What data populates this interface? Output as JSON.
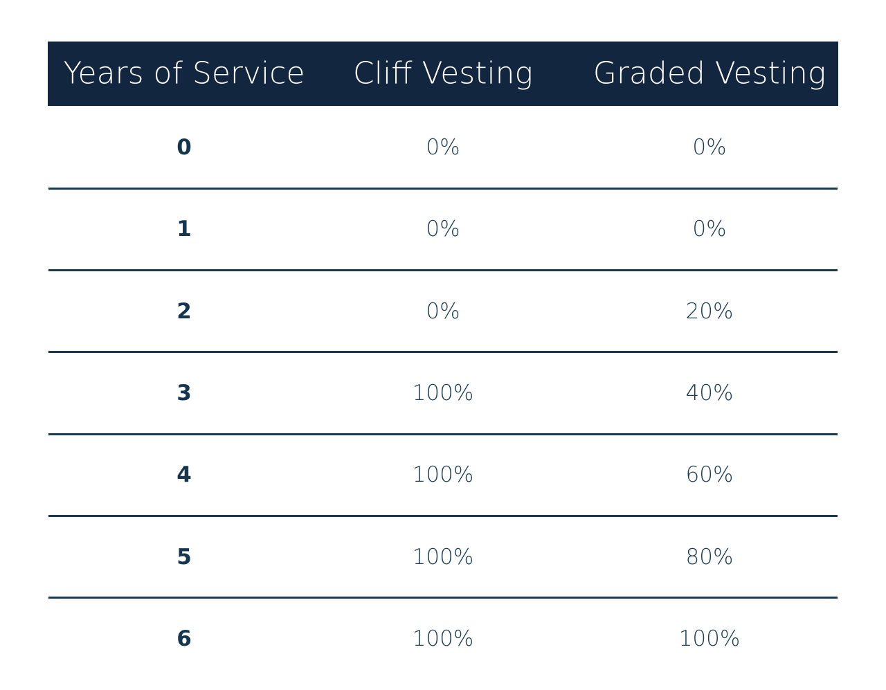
{
  "table": {
    "header": [
      "Years of Service",
      "Cliff Vesting",
      "Graded Vesting"
    ],
    "rows": [
      [
        "0",
        "0%",
        "0%"
      ],
      [
        "1",
        "0%",
        "0%"
      ],
      [
        "2",
        "0%",
        "20%"
      ],
      [
        "3",
        "100%",
        "40%"
      ],
      [
        "4",
        "100%",
        "60%"
      ],
      [
        "5",
        "100%",
        "80%"
      ],
      [
        "6",
        "100%",
        "100%"
      ]
    ]
  }
}
